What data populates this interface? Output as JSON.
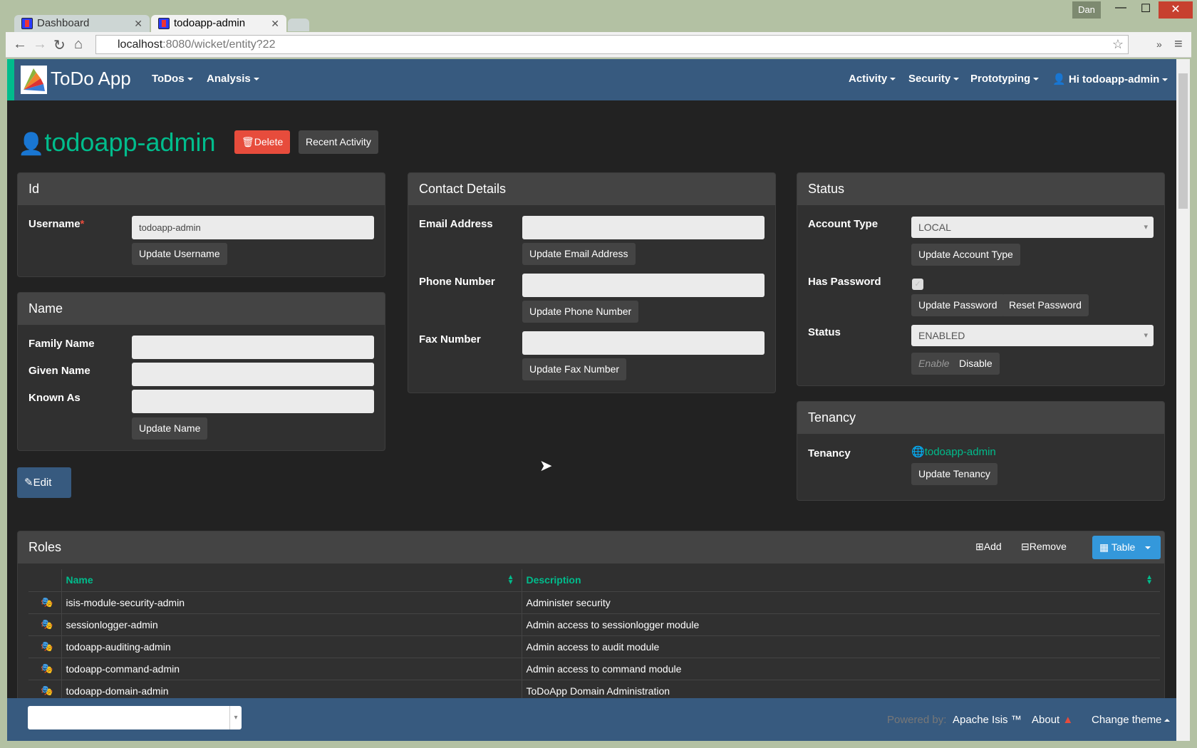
{
  "browser": {
    "tabs": [
      {
        "label": "Dashboard"
      },
      {
        "label": "todoapp-admin"
      }
    ],
    "url_host": "localhost",
    "url_rest": ":8080/wicket/entity?22",
    "user": "Dan"
  },
  "navbar": {
    "brand": "ToDo App",
    "left": [
      {
        "label": "ToDos"
      },
      {
        "label": "Analysis"
      }
    ],
    "right": [
      {
        "label": "Activity"
      },
      {
        "label": "Security"
      },
      {
        "label": "Prototyping"
      },
      {
        "label": "Hi todoapp-admin"
      }
    ]
  },
  "entity": {
    "title": "todoapp-admin",
    "delete_label": "Delete",
    "recent_activity_label": "Recent Activity",
    "edit_label": "Edit"
  },
  "id_panel": {
    "title": "Id",
    "username_label": "Username",
    "required": "*",
    "username_value": "todoapp-admin",
    "update_username": "Update Username"
  },
  "name_panel": {
    "title": "Name",
    "family_name": "Family Name",
    "given_name": "Given Name",
    "known_as": "Known As",
    "update_name": "Update Name"
  },
  "contact_panel": {
    "title": "Contact Details",
    "email_label": "Email Address",
    "update_email": "Update Email Address",
    "phone_label": "Phone Number",
    "update_phone": "Update Phone Number",
    "fax_label": "Fax Number",
    "update_fax": "Update Fax Number"
  },
  "status_panel": {
    "title": "Status",
    "account_type_label": "Account Type",
    "account_type_value": "LOCAL",
    "update_account_type": "Update Account Type",
    "has_password_label": "Has Password",
    "has_password": true,
    "update_password": "Update Password",
    "reset_password": "Reset Password",
    "status_label": "Status",
    "status_value": "ENABLED",
    "enable": "Enable",
    "disable": "Disable"
  },
  "tenancy_panel": {
    "title": "Tenancy",
    "tenancy_label": "Tenancy",
    "tenancy_value": "todoapp-admin",
    "update_tenancy": "Update Tenancy"
  },
  "roles": {
    "title": "Roles",
    "add": "Add",
    "remove": "Remove",
    "view": "Table",
    "columns": [
      "Name",
      "Description"
    ],
    "rows": [
      {
        "name": "isis-module-security-admin",
        "description": "Administer security"
      },
      {
        "name": "sessionlogger-admin",
        "description": "Admin access to sessionlogger module"
      },
      {
        "name": "todoapp-auditing-admin",
        "description": "Admin access to audit module"
      },
      {
        "name": "todoapp-command-admin",
        "description": "Admin access to command module"
      },
      {
        "name": "todoapp-domain-admin",
        "description": "ToDoApp Domain Administration"
      }
    ]
  },
  "footer": {
    "powered_by": "Powered by:",
    "isis": "Apache Isis ™",
    "about": "About",
    "change_theme": "Change theme"
  },
  "colors": {
    "navbar": "#375a7f",
    "accent": "#00bc8c",
    "danger": "#e74c3c",
    "primary": "#3498db"
  }
}
